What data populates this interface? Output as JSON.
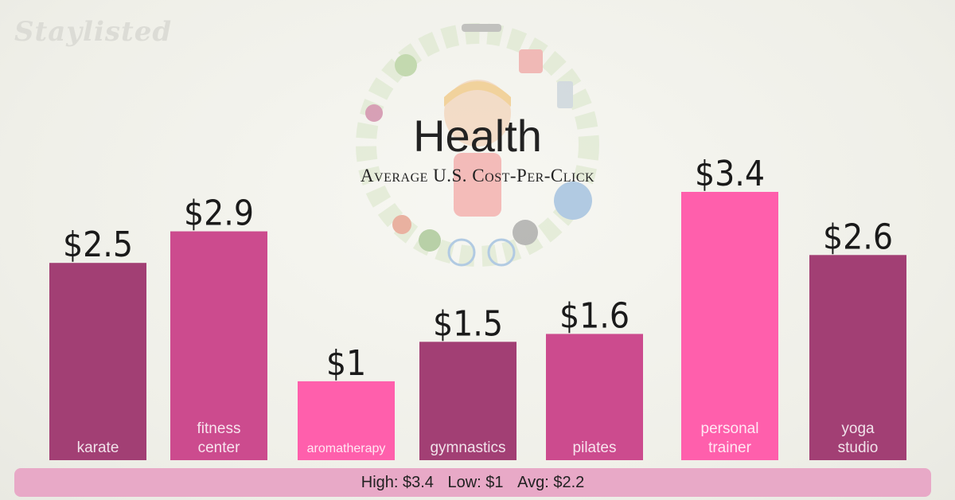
{
  "brand": "Staylisted",
  "title": "Health",
  "subtitle": "Average U.S. Cost-Per-Click",
  "colors": {
    "dark": "#a23f74",
    "medium": "#cc4b8e",
    "bright": "#ff5fac",
    "summary_bg": "#e8a9c7"
  },
  "chart_data": {
    "type": "bar",
    "title": "Health",
    "subtitle": "Average U.S. Cost-Per-Click",
    "xlabel": "",
    "ylabel": "",
    "ylim": [
      0,
      3.4
    ],
    "grid": false,
    "bars": [
      {
        "label_lines": [
          "karate"
        ],
        "value": 2.5,
        "value_label": "$2.5",
        "shade": "dark"
      },
      {
        "label_lines": [
          "fitness",
          "center"
        ],
        "value": 2.9,
        "value_label": "$2.9",
        "shade": "medium"
      },
      {
        "label_lines": [
          "aromatherapy"
        ],
        "value": 1.0,
        "value_label": "$1",
        "shade": "bright"
      },
      {
        "label_lines": [
          "gymnastics"
        ],
        "value": 1.5,
        "value_label": "$1.5",
        "shade": "dark"
      },
      {
        "label_lines": [
          "pilates"
        ],
        "value": 1.6,
        "value_label": "$1.6",
        "shade": "medium"
      },
      {
        "label_lines": [
          "personal",
          "trainer"
        ],
        "value": 3.4,
        "value_label": "$3.4",
        "shade": "bright"
      },
      {
        "label_lines": [
          "yoga",
          "studio"
        ],
        "value": 2.6,
        "value_label": "$2.6",
        "shade": "dark"
      }
    ]
  },
  "summary": {
    "high": "High: $3.4",
    "low": "Low: $1",
    "avg": "Avg: $2.2"
  }
}
